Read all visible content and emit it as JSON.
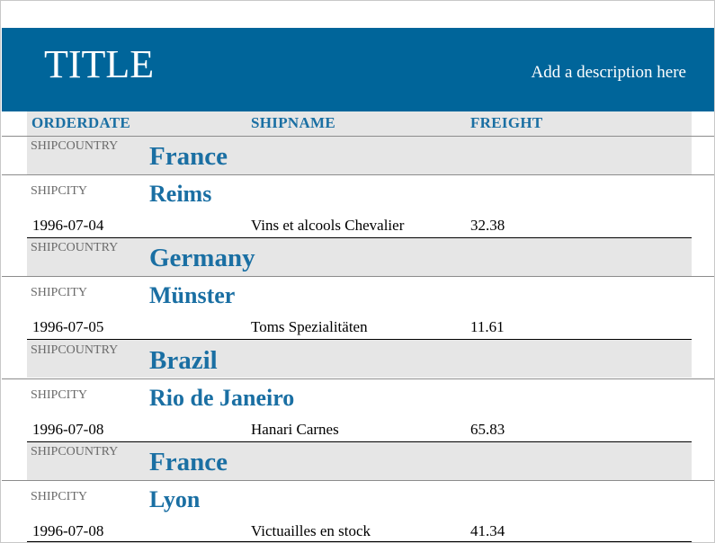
{
  "report": {
    "title": "TITLE",
    "description": "Add a description here"
  },
  "columns": {
    "orderdate": "ORDERDATE",
    "shipname": "SHIPNAME",
    "freight": "FREIGHT"
  },
  "labels": {
    "shipcountry": "SHIPCOUNTRY",
    "shipcity": "SHIPCITY"
  },
  "groups": [
    {
      "country": "France",
      "city": "Reims",
      "orderdate": "1996-07-04",
      "shipname": "Vins et alcools Chevalier",
      "freight": "32.38"
    },
    {
      "country": "Germany",
      "city": "Münster",
      "orderdate": "1996-07-05",
      "shipname": "Toms Spezialitäten",
      "freight": "11.61"
    },
    {
      "country": "Brazil",
      "city": "Rio de Janeiro",
      "orderdate": "1996-07-08",
      "shipname": "Hanari Carnes",
      "freight": "65.83"
    },
    {
      "country": "France",
      "city": "Lyon",
      "orderdate": "1996-07-08",
      "shipname": "Victuailles en stock",
      "freight": "41.34"
    }
  ],
  "colors": {
    "banner": "#00659a",
    "accent": "#1a6fa3",
    "band": "#e6e6e6"
  }
}
